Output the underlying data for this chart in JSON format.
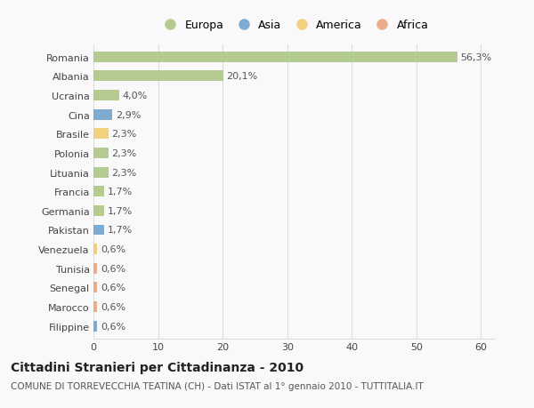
{
  "countries": [
    "Romania",
    "Albania",
    "Ucraina",
    "Cina",
    "Brasile",
    "Polonia",
    "Lituania",
    "Francia",
    "Germania",
    "Pakistan",
    "Venezuela",
    "Tunisia",
    "Senegal",
    "Marocco",
    "Filippine"
  ],
  "values": [
    56.3,
    20.1,
    4.0,
    2.9,
    2.3,
    2.3,
    2.3,
    1.7,
    1.7,
    1.7,
    0.6,
    0.6,
    0.6,
    0.6,
    0.6
  ],
  "labels": [
    "56,3%",
    "20,1%",
    "4,0%",
    "2,9%",
    "2,3%",
    "2,3%",
    "2,3%",
    "1,7%",
    "1,7%",
    "1,7%",
    "0,6%",
    "0,6%",
    "0,6%",
    "0,6%",
    "0,6%"
  ],
  "continents": [
    "Europa",
    "Europa",
    "Europa",
    "Asia",
    "America",
    "Europa",
    "Europa",
    "Europa",
    "Europa",
    "Asia",
    "America",
    "Africa",
    "Africa",
    "Africa",
    "Asia"
  ],
  "colors": {
    "Europa": "#a8c580",
    "Asia": "#6a9ec9",
    "America": "#f0c96a",
    "Africa": "#e8a07a"
  },
  "legend_order": [
    "Europa",
    "Asia",
    "America",
    "Africa"
  ],
  "title": "Cittadini Stranieri per Cittadinanza - 2010",
  "subtitle": "COMUNE DI TORREVECCHIA TEATINA (CH) - Dati ISTAT al 1° gennaio 2010 - TUTTITALIA.IT",
  "xlim": [
    0,
    62
  ],
  "background_color": "#f9f9f9",
  "grid_color": "#dddddd",
  "bar_height": 0.55,
  "title_fontsize": 10,
  "subtitle_fontsize": 7.5,
  "tick_fontsize": 8,
  "label_fontsize": 8
}
